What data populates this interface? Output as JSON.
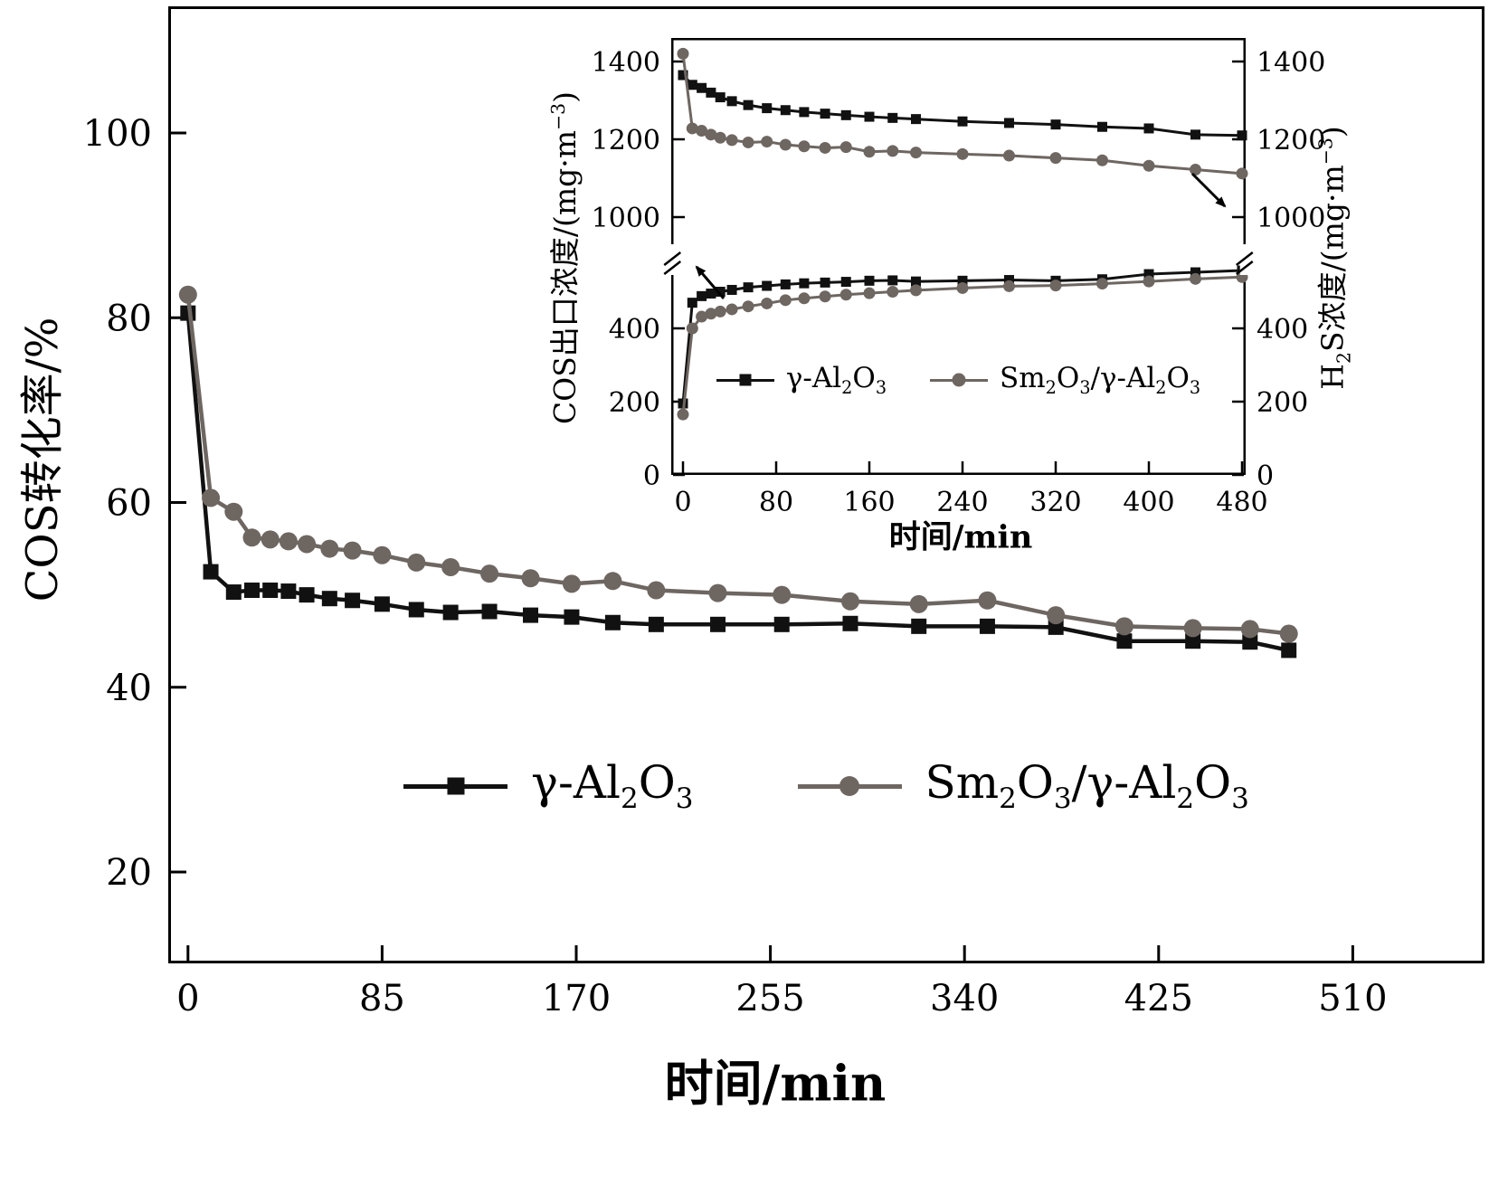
{
  "colors": {
    "black": "#111111",
    "gray": "#6e6661",
    "frame": "#000000",
    "background": "#ffffff"
  },
  "chart_data": [
    {
      "id": "main",
      "type": "line",
      "title": "",
      "xlabel": "时间/min",
      "ylabel": "COS转化率/%",
      "xlim": [
        -9,
        568
      ],
      "ylim": [
        10,
        114
      ],
      "xticks": [
        0,
        85,
        170,
        255,
        340,
        425,
        510
      ],
      "yticks": [
        20,
        40,
        60,
        80,
        100
      ],
      "grid": false,
      "legend_position": "lower-center",
      "series": [
        {
          "name": "γ-Al_2O_3",
          "marker": "square",
          "color": "black",
          "x": [
            0,
            10,
            20,
            28,
            36,
            44,
            52,
            62,
            72,
            85,
            100,
            115,
            132,
            150,
            168,
            186,
            205,
            232,
            260,
            290,
            320,
            350,
            380,
            410,
            440,
            465,
            482
          ],
          "y": [
            80.5,
            52.5,
            50.3,
            50.5,
            50.5,
            50.4,
            50.0,
            49.6,
            49.4,
            49.0,
            48.4,
            48.1,
            48.2,
            47.8,
            47.6,
            47.0,
            46.8,
            46.8,
            46.8,
            46.9,
            46.6,
            46.6,
            46.5,
            45.0,
            45.0,
            44.9,
            44.0
          ]
        },
        {
          "name": "Sm_2O_3/γ-Al_2O_3",
          "marker": "circle",
          "color": "gray",
          "x": [
            0,
            10,
            20,
            28,
            36,
            44,
            52,
            62,
            72,
            85,
            100,
            115,
            132,
            150,
            168,
            186,
            205,
            232,
            260,
            290,
            320,
            350,
            380,
            410,
            440,
            465,
            482
          ],
          "y": [
            82.5,
            60.5,
            59.0,
            56.2,
            56.0,
            55.8,
            55.5,
            55.0,
            54.8,
            54.3,
            53.5,
            53.0,
            52.3,
            51.8,
            51.2,
            51.5,
            50.5,
            50.2,
            50.0,
            49.3,
            49.0,
            49.4,
            47.8,
            46.6,
            46.4,
            46.3,
            45.8
          ]
        }
      ]
    },
    {
      "id": "inset",
      "type": "line-broken-y",
      "title": "",
      "xlabel": "时间/min",
      "ylabel_left": "COS出口浓度/(mg·m^-3)",
      "ylabel_right": "H_2S浓度/(mg·m^-3)",
      "xlim": [
        -10,
        490
      ],
      "xticks": [
        0,
        80,
        160,
        240,
        320,
        400,
        480
      ],
      "yticks_lower": [
        0,
        200,
        400
      ],
      "yticks_upper": [
        1000,
        1200,
        1400
      ],
      "ylim_lower": [
        0,
        600
      ],
      "ylim_upper": [
        950,
        1430
      ],
      "axis_break": true,
      "grid": false,
      "legend_position": "inside-lower-center",
      "series": [
        {
          "name": "γ-Al_2O_3",
          "axis": "left",
          "marker": "square",
          "color": "black",
          "x": [
            0,
            8,
            16,
            24,
            32,
            42,
            56,
            72,
            88,
            104,
            122,
            140,
            160,
            180,
            200,
            240,
            280,
            320,
            360,
            400,
            440,
            480
          ],
          "y": [
            195,
            470,
            488,
            495,
            500,
            505,
            512,
            516,
            520,
            523,
            525,
            527,
            530,
            531,
            528,
            530,
            532,
            530,
            534,
            548,
            553,
            558
          ]
        },
        {
          "name": "Sm_2O_3/γ-Al_2O_3",
          "axis": "left",
          "marker": "circle",
          "color": "gray",
          "x": [
            0,
            8,
            16,
            24,
            32,
            42,
            56,
            72,
            88,
            104,
            122,
            140,
            160,
            180,
            200,
            240,
            280,
            320,
            360,
            400,
            440,
            480
          ],
          "y": [
            165,
            400,
            432,
            440,
            446,
            452,
            460,
            468,
            477,
            482,
            487,
            492,
            496,
            500,
            504,
            510,
            515,
            517,
            522,
            528,
            535,
            540
          ]
        },
        {
          "name": "γ-Al_2O_3",
          "axis": "right",
          "marker": "square",
          "color": "black",
          "x": [
            0,
            8,
            16,
            24,
            32,
            42,
            56,
            72,
            88,
            104,
            122,
            140,
            160,
            180,
            200,
            240,
            280,
            320,
            360,
            400,
            440,
            480
          ],
          "y": [
            1365,
            1340,
            1332,
            1320,
            1308,
            1298,
            1288,
            1280,
            1275,
            1270,
            1266,
            1262,
            1258,
            1255,
            1252,
            1246,
            1242,
            1238,
            1232,
            1228,
            1212,
            1210
          ]
        },
        {
          "name": "Sm_2O_3/γ-Al_2O_3",
          "axis": "right",
          "marker": "circle",
          "color": "gray",
          "x": [
            0,
            8,
            16,
            24,
            32,
            42,
            56,
            72,
            88,
            104,
            122,
            140,
            160,
            180,
            200,
            240,
            280,
            320,
            360,
            400,
            440,
            480
          ],
          "y": [
            1420,
            1228,
            1222,
            1212,
            1204,
            1198,
            1192,
            1194,
            1186,
            1182,
            1178,
            1180,
            1168,
            1170,
            1166,
            1162,
            1158,
            1152,
            1146,
            1132,
            1122,
            1112
          ]
        }
      ]
    }
  ]
}
